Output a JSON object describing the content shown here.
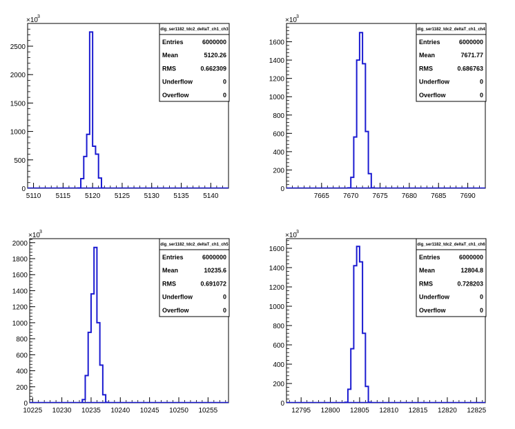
{
  "chart_data": [
    {
      "type": "histogram",
      "title": "dig_ser1182_tdc2_deltaT_ch1_ch3",
      "y_multiplier_label": "×10",
      "y_multiplier_exp": "3",
      "xlim": [
        5109,
        5143
      ],
      "ylim": [
        0,
        2900
      ],
      "xticks": [
        "5110",
        "5115",
        "5120",
        "5125",
        "5130",
        "5135",
        "5140"
      ],
      "yticks": [
        "0",
        "500",
        "1000",
        "1500",
        "2000",
        "2500"
      ],
      "xtick_values": [
        5110,
        5115,
        5120,
        5125,
        5130,
        5135,
        5140
      ],
      "ytick_values": [
        0,
        500,
        1000,
        1500,
        2000,
        2500
      ],
      "bin_width": 0.5,
      "bin_edges_start": 5117.5,
      "values": [
        5,
        170,
        560,
        950,
        2750,
        740,
        600,
        180,
        5
      ],
      "line_color": "#1a1ad0",
      "stats": [
        {
          "label": "Entries",
          "value": "6000000"
        },
        {
          "label": "Mean",
          "value": "5120.26"
        },
        {
          "label": "RMS",
          "value": "0.662309"
        },
        {
          "label": "Underflow",
          "value": "0"
        },
        {
          "label": "Overflow",
          "value": "0"
        }
      ]
    },
    {
      "type": "histogram",
      "title": "dig_ser1182_tdc2_deltaT_ch1_ch4",
      "y_multiplier_label": "×10",
      "y_multiplier_exp": "3",
      "xlim": [
        7659,
        7693
      ],
      "ylim": [
        0,
        1800
      ],
      "xticks": [
        "7665",
        "7670",
        "7675",
        "7680",
        "7685",
        "7690"
      ],
      "yticks": [
        "0",
        "200",
        "400",
        "600",
        "800",
        "1000",
        "1200",
        "1400",
        "1600"
      ],
      "xtick_values": [
        7665,
        7670,
        7675,
        7680,
        7685,
        7690
      ],
      "ytick_values": [
        0,
        200,
        400,
        600,
        800,
        1000,
        1200,
        1400,
        1600
      ],
      "bin_width": 0.5,
      "bin_edges_start": 7669.5,
      "values": [
        5,
        120,
        560,
        1400,
        1700,
        1360,
        620,
        160,
        5
      ],
      "line_color": "#1a1ad0",
      "stats": [
        {
          "label": "Entries",
          "value": "6000000"
        },
        {
          "label": "Mean",
          "value": "7671.77"
        },
        {
          "label": "RMS",
          "value": "0.686763"
        },
        {
          "label": "Underflow",
          "value": "0"
        },
        {
          "label": "Overflow",
          "value": "0"
        }
      ]
    },
    {
      "type": "histogram",
      "title": "dig_ser1182_tdc2_deltaT_ch1_ch5",
      "y_multiplier_label": "×10",
      "y_multiplier_exp": "3",
      "xlim": [
        10224.5,
        10258.5
      ],
      "ylim": [
        0,
        2050
      ],
      "xticks": [
        "10225",
        "10230",
        "10235",
        "10240",
        "10245",
        "10250",
        "10255"
      ],
      "yticks": [
        "0",
        "200",
        "400",
        "600",
        "800",
        "1000",
        "1200",
        "1400",
        "1600",
        "1800",
        "2000"
      ],
      "xtick_values": [
        10225,
        10230,
        10235,
        10240,
        10245,
        10250,
        10255
      ],
      "ytick_values": [
        0,
        200,
        400,
        600,
        800,
        1000,
        1200,
        1400,
        1600,
        1800,
        2000
      ],
      "bin_width": 0.5,
      "bin_edges_start": 10233.5,
      "values": [
        40,
        340,
        880,
        1360,
        1940,
        1000,
        470,
        100,
        5
      ],
      "line_color": "#1a1ad0",
      "stats": [
        {
          "label": "Entries",
          "value": "6000000"
        },
        {
          "label": "Mean",
          "value": "10235.6"
        },
        {
          "label": "RMS",
          "value": "0.691072"
        },
        {
          "label": "Underflow",
          "value": "0"
        },
        {
          "label": "Overflow",
          "value": "0"
        }
      ]
    },
    {
      "type": "histogram",
      "title": "dig_ser1182_tdc2_deltaT_ch1_ch6",
      "y_multiplier_label": "×10",
      "y_multiplier_exp": "3",
      "xlim": [
        12792.5,
        12826.5
      ],
      "ylim": [
        0,
        1700
      ],
      "xticks": [
        "12795",
        "12800",
        "12805",
        "12810",
        "12815",
        "12820",
        "12825"
      ],
      "yticks": [
        "0",
        "200",
        "400",
        "600",
        "800",
        "1000",
        "1200",
        "1400",
        "1600"
      ],
      "xtick_values": [
        12795,
        12800,
        12805,
        12810,
        12815,
        12820,
        12825
      ],
      "ytick_values": [
        0,
        200,
        400,
        600,
        800,
        1000,
        1200,
        1400,
        1600
      ],
      "bin_width": 0.5,
      "bin_edges_start": 12802.5,
      "values": [
        5,
        140,
        560,
        1420,
        1620,
        1460,
        720,
        170,
        5
      ],
      "line_color": "#1a1ad0",
      "stats": [
        {
          "label": "Entries",
          "value": "6000000"
        },
        {
          "label": "Mean",
          "value": "12804.8"
        },
        {
          "label": "RMS",
          "value": "0.728203"
        },
        {
          "label": "Underflow",
          "value": "0"
        },
        {
          "label": "Overflow",
          "value": "0"
        }
      ]
    }
  ]
}
